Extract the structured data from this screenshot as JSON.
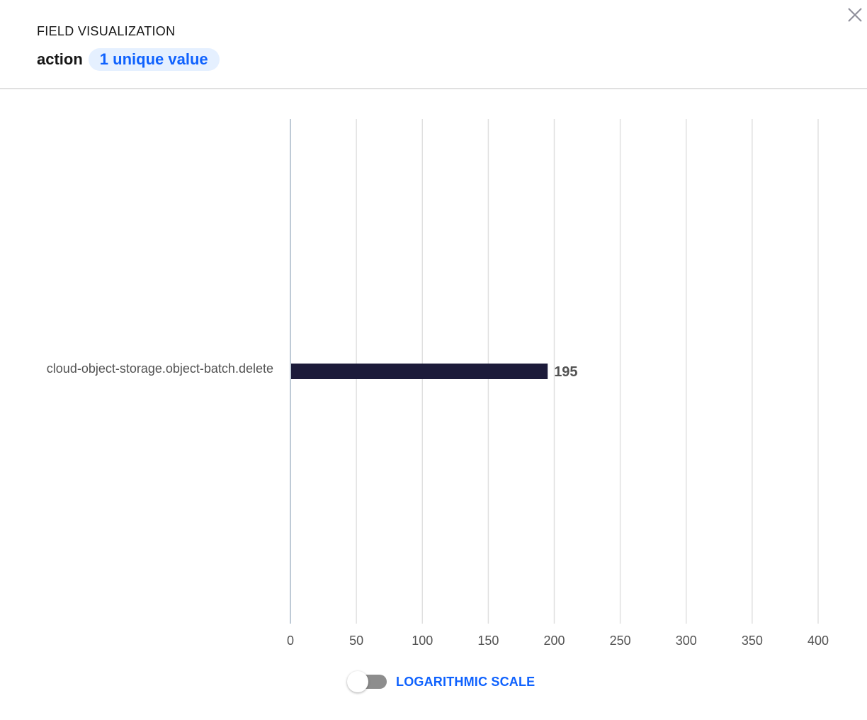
{
  "header": {
    "label": "FIELD VISUALIZATION",
    "field_name": "action",
    "unique_badge": "1 unique value"
  },
  "icons": {
    "close": "close-icon"
  },
  "toggle": {
    "label": "LOGARITHMIC SCALE",
    "checked": false
  },
  "colors": {
    "bar": "#1c1b3a",
    "accent": "#0f62fe",
    "badge_bg": "#e5f0ff"
  },
  "chart_data": {
    "type": "bar",
    "orientation": "horizontal",
    "categories": [
      "cloud-object-storage.object-batch.delete"
    ],
    "values": [
      195
    ],
    "data_labels": [
      "195"
    ],
    "xlim": [
      0,
      400
    ],
    "xticks": [
      0,
      50,
      100,
      150,
      200,
      250,
      300,
      350,
      400
    ],
    "grid": true,
    "legend": "none"
  }
}
